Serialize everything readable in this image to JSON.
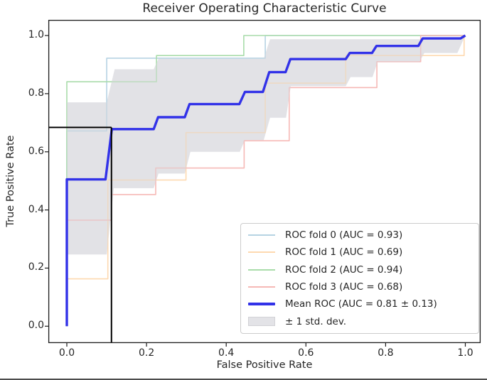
{
  "title": "Receiver Operating Characteristic Curve",
  "x_axis": {
    "label": "False Positive Rate",
    "ticks": [
      "0.0",
      "0.2",
      "0.4",
      "0.6",
      "0.8",
      "1.0"
    ]
  },
  "y_axis": {
    "label": "True Positive Rate",
    "ticks": [
      "0.0",
      "0.2",
      "0.4",
      "0.6",
      "0.8",
      "1.0"
    ]
  },
  "legend": {
    "entries": [
      {
        "label": "ROC fold 0 (AUC = 0.93)",
        "color": "#b6d3e3",
        "kind": "line"
      },
      {
        "label": "ROC fold 1 (AUC = 0.69)",
        "color": "#fed9b0",
        "kind": "line"
      },
      {
        "label": "ROC fold 2 (AUC = 0.94)",
        "color": "#a9dcaa",
        "kind": "line"
      },
      {
        "label": "ROC fold 3 (AUC = 0.68)",
        "color": "#f6b9b6",
        "kind": "line"
      },
      {
        "label": "Mean ROC (AUC = 0.81 ± 0.13)",
        "color": "#3232e8",
        "kind": "thick-line"
      },
      {
        "label": "± 1 std. dev.",
        "color": "#e3e3e7",
        "kind": "patch"
      }
    ]
  },
  "chart_data": {
    "type": "line",
    "title": "Receiver Operating Characteristic Curve",
    "xlabel": "False Positive Rate",
    "ylabel": "True Positive Rate",
    "xlim": [
      -0.046,
      1.038
    ],
    "ylim": [
      -0.058,
      1.054
    ],
    "x_ticks": [
      0,
      0.2,
      0.4,
      0.6,
      0.8,
      1.0
    ],
    "y_ticks": [
      0,
      0.2,
      0.4,
      0.6,
      0.8,
      1.0
    ],
    "grid": false,
    "legend_position": "lower right",
    "series": [
      {
        "name": "ROC fold 0 (AUC = 0.93)",
        "auc": 0.93,
        "color": "#b6d3e3",
        "width": 1.6,
        "points": [
          [
            0,
            0
          ],
          [
            0,
            0.672
          ],
          [
            0.1,
            0.672
          ],
          [
            0.1,
            0.922
          ],
          [
            0.498,
            0.922
          ],
          [
            0.498,
            1
          ],
          [
            1,
            1
          ]
        ]
      },
      {
        "name": "ROC fold 1 (AUC = 0.69)",
        "auc": 0.69,
        "color": "#fed9b0",
        "width": 1.6,
        "points": [
          [
            0,
            0
          ],
          [
            0,
            0.163
          ],
          [
            0.103,
            0.163
          ],
          [
            0.103,
            0.503
          ],
          [
            0.299,
            0.503
          ],
          [
            0.299,
            0.666
          ],
          [
            0.498,
            0.666
          ],
          [
            0.498,
            0.836
          ],
          [
            0.7,
            0.836
          ],
          [
            0.7,
            0.931
          ],
          [
            0.997,
            0.931
          ],
          [
            0.997,
            1
          ],
          [
            1,
            1
          ]
        ]
      },
      {
        "name": "ROC fold 2 (AUC = 0.94)",
        "auc": 0.94,
        "color": "#a9dcaa",
        "width": 1.6,
        "points": [
          [
            0,
            0
          ],
          [
            0,
            0.841
          ],
          [
            0.225,
            0.841
          ],
          [
            0.225,
            0.931
          ],
          [
            0.444,
            0.931
          ],
          [
            0.444,
            1
          ],
          [
            1,
            1
          ]
        ]
      },
      {
        "name": "ROC fold 3 (AUC = 0.68)",
        "auc": 0.68,
        "color": "#f6b9b6",
        "width": 1.6,
        "points": [
          [
            0,
            0
          ],
          [
            0,
            0.365
          ],
          [
            0.112,
            0.365
          ],
          [
            0.112,
            0.453
          ],
          [
            0.223,
            0.453
          ],
          [
            0.223,
            0.544
          ],
          [
            0.445,
            0.544
          ],
          [
            0.445,
            0.638
          ],
          [
            0.558,
            0.638
          ],
          [
            0.558,
            0.821
          ],
          [
            0.778,
            0.821
          ],
          [
            0.778,
            0.91
          ],
          [
            0.888,
            0.91
          ],
          [
            0.888,
            1
          ],
          [
            1,
            1
          ]
        ]
      },
      {
        "name": "Mean ROC (AUC = 0.81 ± 0.13)",
        "auc": 0.81,
        "auc_std": 0.13,
        "color": "#3232e8",
        "width": 3.4,
        "points": [
          [
            0,
            0
          ],
          [
            0,
            0.505
          ],
          [
            0.097,
            0.505
          ],
          [
            0.113,
            0.678
          ],
          [
            0.218,
            0.678
          ],
          [
            0.229,
            0.719
          ],
          [
            0.296,
            0.719
          ],
          [
            0.308,
            0.764
          ],
          [
            0.433,
            0.764
          ],
          [
            0.447,
            0.806
          ],
          [
            0.492,
            0.806
          ],
          [
            0.508,
            0.874
          ],
          [
            0.549,
            0.874
          ],
          [
            0.561,
            0.919
          ],
          [
            0.7,
            0.919
          ],
          [
            0.71,
            0.94
          ],
          [
            0.766,
            0.94
          ],
          [
            0.777,
            0.964
          ],
          [
            0.882,
            0.964
          ],
          [
            0.893,
            0.99
          ],
          [
            0.988,
            0.99
          ],
          [
            1,
            1
          ]
        ]
      }
    ],
    "std_band": {
      "label": "± 1 std. dev.",
      "color": "#d9d9de",
      "upper": [
        [
          0,
          0.77
        ],
        [
          0.1,
          0.77
        ],
        [
          0.12,
          0.884
        ],
        [
          0.218,
          0.884
        ],
        [
          0.23,
          0.92
        ],
        [
          0.494,
          0.92
        ],
        [
          0.51,
          0.987
        ],
        [
          0.98,
          0.987
        ],
        [
          1,
          1
        ]
      ],
      "lower": [
        [
          0,
          0.247
        ],
        [
          0.1,
          0.247
        ],
        [
          0.118,
          0.475
        ],
        [
          0.218,
          0.475
        ],
        [
          0.23,
          0.525
        ],
        [
          0.296,
          0.525
        ],
        [
          0.31,
          0.6
        ],
        [
          0.434,
          0.6
        ],
        [
          0.447,
          0.64
        ],
        [
          0.494,
          0.64
        ],
        [
          0.51,
          0.717
        ],
        [
          0.55,
          0.717
        ],
        [
          0.562,
          0.826
        ],
        [
          0.7,
          0.826
        ],
        [
          0.712,
          0.857
        ],
        [
          0.767,
          0.857
        ],
        [
          0.78,
          0.909
        ],
        [
          0.885,
          0.909
        ],
        [
          0.897,
          0.94
        ],
        [
          0.98,
          0.94
        ],
        [
          1,
          1
        ]
      ]
    },
    "threshold_marker": {
      "x": 0.112,
      "y": 0.684,
      "color": "#000000"
    }
  },
  "colors": {
    "spine": "#1c1c1c",
    "text": "#262626",
    "background": "#ffffff",
    "legend_border": "#cccccc"
  }
}
